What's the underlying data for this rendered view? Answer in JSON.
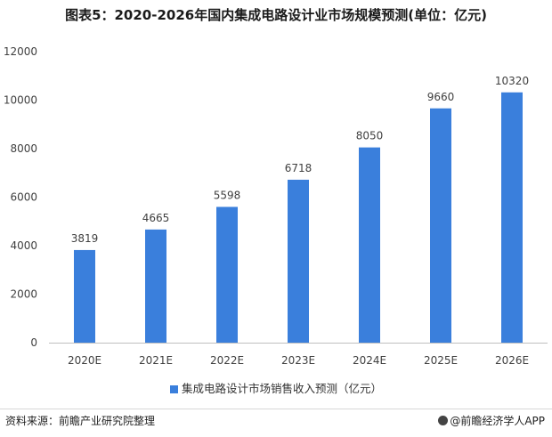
{
  "title": "图表5：2020-2026年国内集成电路设计业市场规模预测(单位：亿元)",
  "source": "资料来源：前瞻产业研究院整理",
  "brand": "@前瞻经济学人APP",
  "chart_data": {
    "type": "bar",
    "categories": [
      "2020E",
      "2021E",
      "2022E",
      "2023E",
      "2024E",
      "2025E",
      "2026E"
    ],
    "series": [
      {
        "name": "集成电路设计市场销售收入预测（亿元）",
        "values": [
          3819,
          4665,
          5598,
          6718,
          8050,
          9660,
          10320
        ]
      }
    ],
    "ylim": [
      0,
      12000
    ],
    "yticks": [
      0,
      2000,
      4000,
      6000,
      8000,
      10000,
      12000
    ],
    "data_labels": true,
    "grid": false,
    "legend_position": "bottom",
    "colors": {
      "bar": "#3a7fdc",
      "axis": "#bfbfbf",
      "text": "#404040"
    }
  }
}
